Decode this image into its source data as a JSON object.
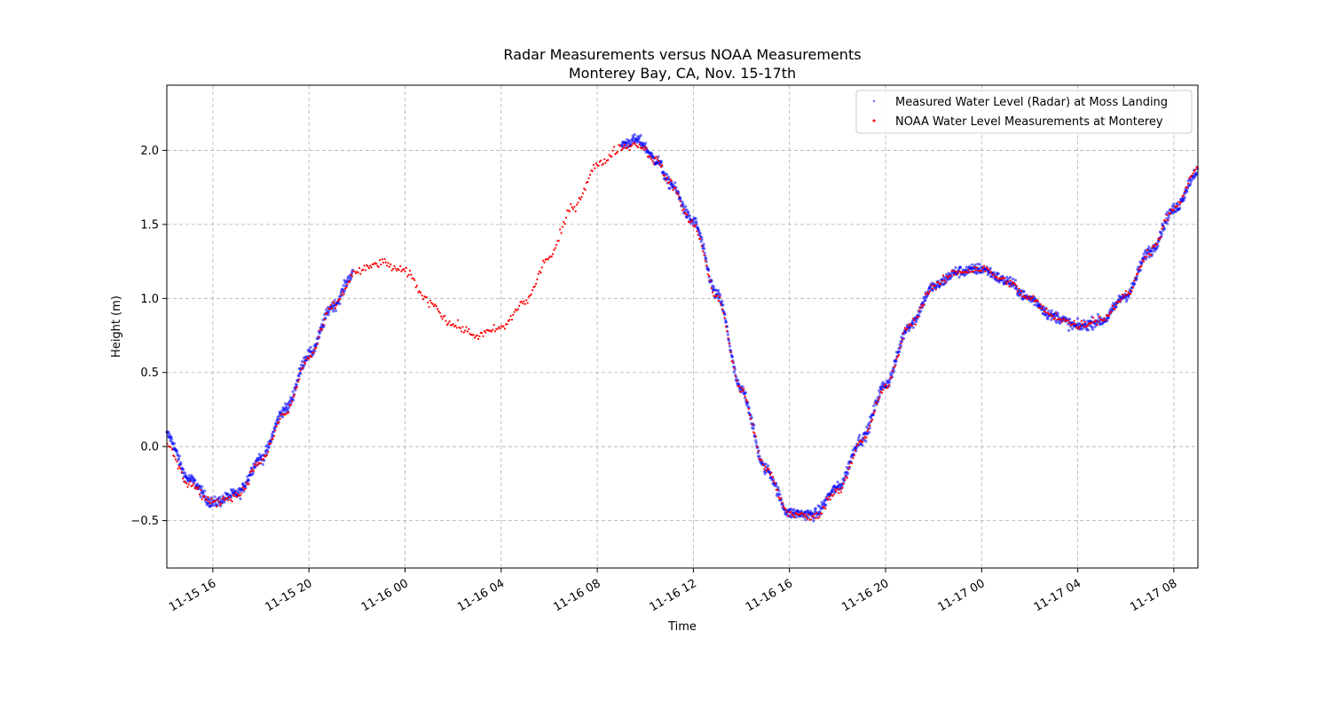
{
  "chart_data": {
    "type": "scatter",
    "title": "Radar Measurements versus NOAA Measurements",
    "subtitle": "Monterey Bay, CA, Nov. 15-17th",
    "xlabel": "Time",
    "ylabel": "Height (m)",
    "xlim": [
      "2023-11-15 14:05",
      "2023-11-17 09:00"
    ],
    "ylim": [
      -0.82,
      2.44
    ],
    "y_ticks": [
      -0.5,
      0.0,
      0.5,
      1.0,
      1.5,
      2.0
    ],
    "y_tick_labels": [
      "−0.5",
      "0.0",
      "0.5",
      "1.0",
      "1.5",
      "2.0"
    ],
    "x_ticks": [
      "2023-11-15 16:00",
      "2023-11-15 20:00",
      "2023-11-16 00:00",
      "2023-11-16 04:00",
      "2023-11-16 08:00",
      "2023-11-16 12:00",
      "2023-11-16 16:00",
      "2023-11-16 20:00",
      "2023-11-17 00:00",
      "2023-11-17 04:00",
      "2023-11-17 08:00"
    ],
    "x_tick_labels": [
      "11-15 16",
      "11-15 20",
      "11-16 00",
      "11-16 04",
      "11-16 08",
      "11-16 12",
      "11-16 16",
      "11-16 20",
      "11-17 00",
      "11-17 04",
      "11-17 08"
    ],
    "grid": true,
    "legend_position": "top-right",
    "series": [
      {
        "name": "Measured Water Level (Radar) at Moss Landing",
        "color": "#0000ff",
        "marker": "point",
        "gap": [
          "2023-11-15 21:50",
          "2023-11-16 09:00"
        ],
        "x": [
          "2023-11-15 14:05",
          "2023-11-15 15:00",
          "2023-11-15 16:00",
          "2023-11-15 17:00",
          "2023-11-15 18:00",
          "2023-11-15 19:00",
          "2023-11-15 20:00",
          "2023-11-15 21:00",
          "2023-11-15 21:50",
          "2023-11-16 09:00",
          "2023-11-16 09:40",
          "2023-11-16 10:30",
          "2023-11-16 11:00",
          "2023-11-16 12:00",
          "2023-11-16 13:00",
          "2023-11-16 14:00",
          "2023-11-16 15:00",
          "2023-11-16 16:00",
          "2023-11-16 17:00",
          "2023-11-16 18:00",
          "2023-11-16 19:00",
          "2023-11-16 20:00",
          "2023-11-16 21:00",
          "2023-11-16 22:00",
          "2023-11-16 23:00",
          "2023-11-17 00:00",
          "2023-11-17 01:00",
          "2023-11-17 02:00",
          "2023-11-17 03:00",
          "2023-11-17 04:00",
          "2023-11-17 05:00",
          "2023-11-17 06:00",
          "2023-11-17 07:00",
          "2023-11-17 08:00",
          "2023-11-17 09:00"
        ],
        "y": [
          0.08,
          -0.22,
          -0.38,
          -0.32,
          -0.08,
          0.25,
          0.62,
          0.95,
          1.16,
          2.04,
          2.07,
          1.93,
          1.78,
          1.52,
          1.02,
          0.38,
          -0.15,
          -0.45,
          -0.46,
          -0.28,
          0.05,
          0.42,
          0.82,
          1.08,
          1.18,
          1.2,
          1.12,
          1.0,
          0.88,
          0.81,
          0.85,
          1.02,
          1.32,
          1.6,
          1.86
        ]
      },
      {
        "name": "NOAA Water Level Measurements at Monterey",
        "color": "#ff0000",
        "marker": "point",
        "x": [
          "2023-11-15 14:05",
          "2023-11-15 15:00",
          "2023-11-15 16:00",
          "2023-11-15 17:00",
          "2023-11-15 18:00",
          "2023-11-15 19:00",
          "2023-11-15 20:00",
          "2023-11-15 21:00",
          "2023-11-15 22:00",
          "2023-11-15 23:00",
          "2023-11-16 00:00",
          "2023-11-16 01:00",
          "2023-11-16 02:00",
          "2023-11-16 03:00",
          "2023-11-16 04:00",
          "2023-11-16 05:00",
          "2023-11-16 06:00",
          "2023-11-16 07:00",
          "2023-11-16 08:00",
          "2023-11-16 09:00",
          "2023-11-16 09:40",
          "2023-11-16 10:30",
          "2023-11-16 11:00",
          "2023-11-16 12:00",
          "2023-11-16 13:00",
          "2023-11-16 14:00",
          "2023-11-16 15:00",
          "2023-11-16 16:00",
          "2023-11-16 17:00",
          "2023-11-16 18:00",
          "2023-11-16 19:00",
          "2023-11-16 20:00",
          "2023-11-16 21:00",
          "2023-11-16 22:00",
          "2023-11-16 23:00",
          "2023-11-17 00:00",
          "2023-11-17 01:00",
          "2023-11-17 02:00",
          "2023-11-17 03:00",
          "2023-11-17 04:00",
          "2023-11-17 05:00",
          "2023-11-17 06:00",
          "2023-11-17 07:00",
          "2023-11-17 08:00",
          "2023-11-17 09:00"
        ],
        "y": [
          0.0,
          -0.25,
          -0.38,
          -0.33,
          -0.1,
          0.22,
          0.6,
          0.95,
          1.18,
          1.24,
          1.18,
          0.98,
          0.82,
          0.75,
          0.8,
          0.98,
          1.28,
          1.62,
          1.9,
          2.02,
          2.04,
          1.93,
          1.78,
          1.5,
          1.0,
          0.38,
          -0.15,
          -0.45,
          -0.48,
          -0.3,
          0.03,
          0.4,
          0.82,
          1.08,
          1.18,
          1.2,
          1.12,
          1.0,
          0.88,
          0.82,
          0.86,
          1.02,
          1.32,
          1.6,
          1.88
        ]
      }
    ]
  }
}
